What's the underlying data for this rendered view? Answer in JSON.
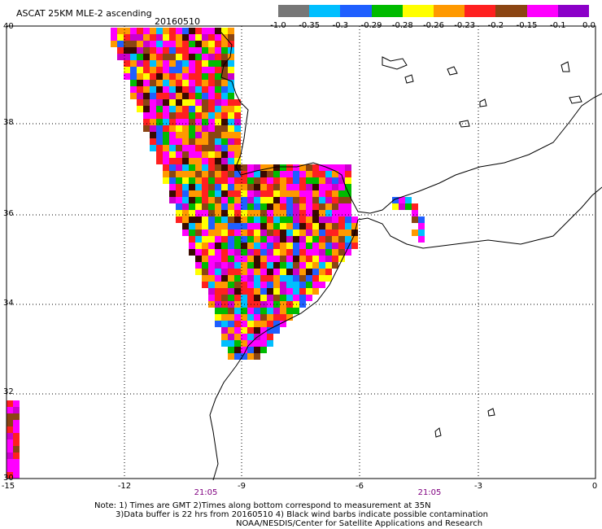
{
  "title": "ASCAT 25KM MLE-2 ascending",
  "date": "20160510",
  "legend": {
    "colors": [
      "#777777",
      "#00bfff",
      "#1f5fff",
      "#00bb00",
      "#ffff00",
      "#ff9900",
      "#ff2020",
      "#8b4513",
      "#ff00ff",
      "#8b00c8"
    ],
    "labels": [
      "-1.0",
      "-0.35",
      "-0.3",
      "-0.29",
      "-0.28",
      "-0.26",
      "-0.23",
      "-0.2",
      "-0.15",
      "-0.1",
      "0.0"
    ]
  },
  "map": {
    "lon_ticks": [
      "-15",
      "-12",
      "-9",
      "-6",
      "-3",
      "0"
    ],
    "lat_ticks": [
      "40",
      "38",
      "36",
      "34",
      "32",
      "30"
    ],
    "time_labels": [
      "21:05",
      "21:05"
    ],
    "background_color": "#ffffff",
    "grid_color": "#000000"
  },
  "notes": {
    "line1": "Note: 1) Times are GMT 2)Times along bottom correspond to measurement at 35N",
    "line2": "3)Data buffer is 22 hrs from 20160510 4) Black wind barbs indicate possible contamination",
    "line3": "NOAA/NESDIS/Center for Satellite Applications and Research"
  }
}
